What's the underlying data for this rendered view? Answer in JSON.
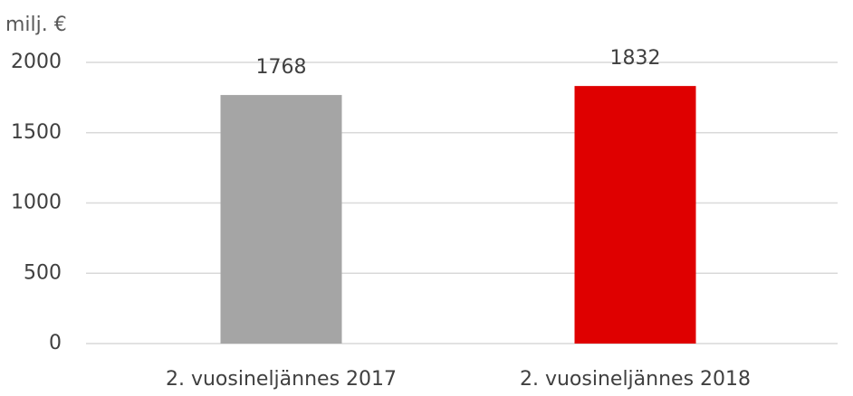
{
  "chart_data": {
    "type": "bar",
    "y_label": "milj. €",
    "categories": [
      "2. vuosineljännes 2017",
      "2. vuosineljännes 2018"
    ],
    "values": [
      1768,
      1832
    ],
    "colors": [
      "#a5a5a5",
      "#df0000"
    ],
    "ylim": [
      0,
      2000
    ],
    "yticks": [
      0,
      500,
      1000,
      1500,
      2000
    ],
    "grid": true
  }
}
